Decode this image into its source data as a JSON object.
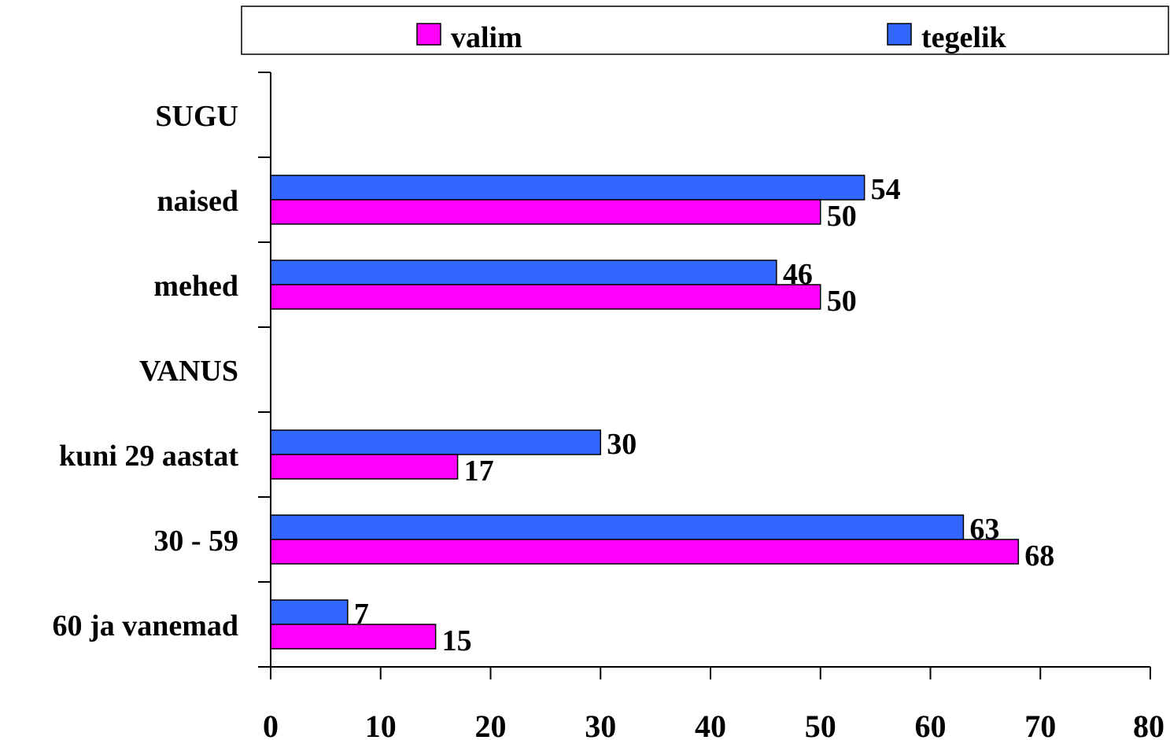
{
  "chart_data": {
    "type": "bar",
    "orientation": "horizontal",
    "categories": [
      "SUGU",
      "naised",
      "mehed",
      "VANUS",
      "kuni 29 aastat",
      "30 - 59",
      "60 ja vanemad"
    ],
    "series": [
      {
        "name": "tegelik",
        "color": "#3366ff",
        "values": [
          null,
          54,
          46,
          null,
          30,
          63,
          7
        ]
      },
      {
        "name": "valim",
        "color": "#ff00ff",
        "values": [
          null,
          50,
          50,
          null,
          17,
          68,
          15
        ]
      }
    ],
    "legend_order": [
      "valim",
      "tegelik"
    ],
    "legend_position": "top",
    "xlim": [
      0,
      80
    ],
    "xticks": [
      0,
      10,
      20,
      30,
      40,
      50,
      60,
      70,
      80
    ],
    "grid": false
  }
}
